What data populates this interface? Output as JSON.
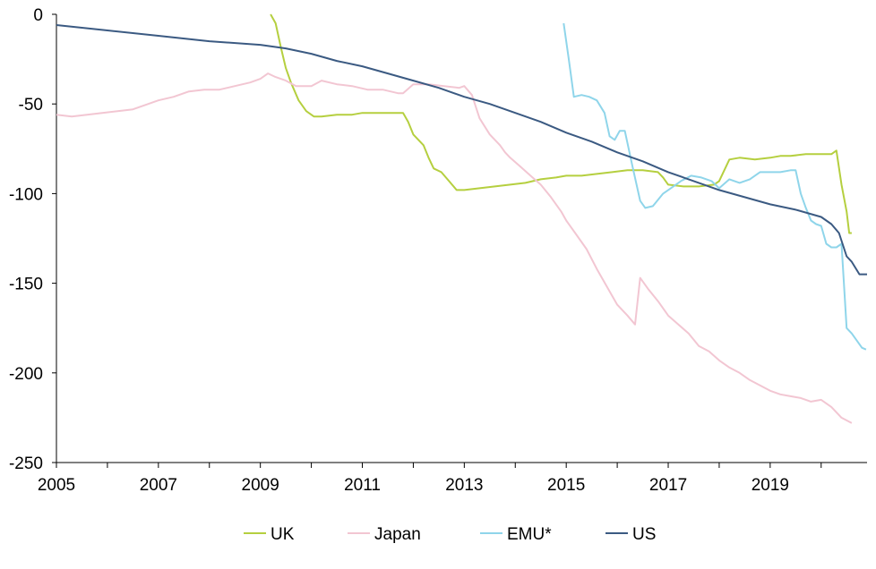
{
  "chart_data": {
    "type": "line",
    "title": "",
    "xlabel": "",
    "ylabel": "",
    "xlim": [
      2005,
      2020.9
    ],
    "ylim": [
      -250,
      0
    ],
    "x_ticks": [
      "2005",
      "2007",
      "2009",
      "2011",
      "2013",
      "2015",
      "2017",
      "2019"
    ],
    "y_ticks": [
      "0",
      "-50",
      "-100",
      "-150",
      "-200",
      "-250"
    ],
    "grid": false,
    "legend_position": "bottom",
    "series": [
      {
        "name": "UK",
        "color": "#b5cf3f",
        "x": [
          2009.2,
          2009.3,
          2009.4,
          2009.5,
          2009.6,
          2009.75,
          2009.9,
          2010.05,
          2010.2,
          2010.5,
          2010.8,
          2011.0,
          2011.2,
          2011.4,
          2011.6,
          2011.8,
          2011.9,
          2012.0,
          2012.2,
          2012.3,
          2012.4,
          2012.55,
          2012.7,
          2012.85,
          2013.0,
          2013.3,
          2013.6,
          2013.9,
          2014.2,
          2014.5,
          2014.8,
          2015.0,
          2015.3,
          2015.6,
          2015.9,
          2016.2,
          2016.5,
          2016.8,
          2016.9,
          2017.0,
          2017.3,
          2017.6,
          2017.9,
          2018.0,
          2018.2,
          2018.4,
          2018.7,
          2019.0,
          2019.2,
          2019.4,
          2019.7,
          2020.0,
          2020.2,
          2020.3,
          2020.4,
          2020.5,
          2020.55,
          2020.6
        ],
        "y": [
          0,
          -5,
          -18,
          -30,
          -38,
          -48,
          -54,
          -57,
          -57,
          -56,
          -56,
          -55,
          -55,
          -55,
          -55,
          -55,
          -60,
          -67,
          -73,
          -80,
          -86,
          -88,
          -93,
          -98,
          -98,
          -97,
          -96,
          -95,
          -94,
          -92,
          -91,
          -90,
          -90,
          -89,
          -88,
          -87,
          -87,
          -88,
          -91,
          -95,
          -96,
          -96,
          -95,
          -93,
          -81,
          -80,
          -81,
          -80,
          -79,
          -79,
          -78,
          -78,
          -78,
          -76,
          -95,
          -110,
          -122,
          -122
        ]
      },
      {
        "name": "Japan",
        "color": "#f2c6d2",
        "x": [
          2005.0,
          2005.3,
          2005.6,
          2005.9,
          2006.2,
          2006.5,
          2006.8,
          2007.0,
          2007.3,
          2007.6,
          2007.9,
          2008.2,
          2008.5,
          2008.8,
          2009.0,
          2009.15,
          2009.3,
          2009.5,
          2009.7,
          2010.0,
          2010.2,
          2010.5,
          2010.8,
          2011.1,
          2011.4,
          2011.7,
          2011.8,
          2012.0,
          2012.3,
          2012.6,
          2012.9,
          2013.0,
          2013.15,
          2013.3,
          2013.5,
          2013.7,
          2013.8,
          2013.9,
          2014.1,
          2014.3,
          2014.5,
          2014.7,
          2014.9,
          2015.0,
          2015.2,
          2015.4,
          2015.6,
          2015.8,
          2016.0,
          2016.2,
          2016.35,
          2016.45,
          2016.6,
          2016.8,
          2017.0,
          2017.2,
          2017.4,
          2017.6,
          2017.8,
          2018.0,
          2018.2,
          2018.4,
          2018.6,
          2018.8,
          2019.0,
          2019.2,
          2019.4,
          2019.6,
          2019.8,
          2020.0,
          2020.2,
          2020.4,
          2020.6
        ],
        "y": [
          -56,
          -57,
          -56,
          -55,
          -54,
          -53,
          -50,
          -48,
          -46,
          -43,
          -42,
          -42,
          -40,
          -38,
          -36,
          -33,
          -35,
          -37,
          -40,
          -40,
          -37,
          -39,
          -40,
          -42,
          -42,
          -44,
          -44,
          -39,
          -39,
          -40,
          -41,
          -40,
          -45,
          -58,
          -67,
          -73,
          -77,
          -80,
          -85,
          -90,
          -95,
          -102,
          -110,
          -115,
          -123,
          -131,
          -142,
          -152,
          -162,
          -168,
          -173,
          -147,
          -153,
          -160,
          -168,
          -173,
          -178,
          -185,
          -188,
          -193,
          -197,
          -200,
          -204,
          -207,
          -210,
          -212,
          -213,
          -214,
          -216,
          -215,
          -219,
          -225,
          -228
        ]
      },
      {
        "name": "EMU*",
        "color": "#8fd5ea",
        "x": [
          2014.95,
          2015.05,
          2015.15,
          2015.3,
          2015.45,
          2015.6,
          2015.75,
          2015.85,
          2015.95,
          2016.05,
          2016.15,
          2016.3,
          2016.45,
          2016.55,
          2016.7,
          2016.9,
          2017.05,
          2017.25,
          2017.45,
          2017.65,
          2017.85,
          2018.0,
          2018.2,
          2018.4,
          2018.6,
          2018.8,
          2019.0,
          2019.2,
          2019.4,
          2019.5,
          2019.6,
          2019.7,
          2019.8,
          2019.9,
          2020.0,
          2020.1,
          2020.2,
          2020.3,
          2020.4,
          2020.5,
          2020.6,
          2020.7,
          2020.8,
          2020.88
        ],
        "y": [
          -5,
          -25,
          -46,
          -45,
          -46,
          -48,
          -55,
          -68,
          -70,
          -65,
          -65,
          -85,
          -104,
          -108,
          -107,
          -100,
          -97,
          -93,
          -90,
          -91,
          -93,
          -97,
          -92,
          -94,
          -92,
          -88,
          -88,
          -88,
          -87,
          -87,
          -100,
          -108,
          -115,
          -117,
          -118,
          -128,
          -130,
          -130,
          -128,
          -175,
          -178,
          -182,
          -186,
          -187
        ]
      },
      {
        "name": "US",
        "color": "#3b5a82",
        "x": [
          2005.0,
          2006.0,
          2007.0,
          2008.0,
          2009.0,
          2009.5,
          2010.0,
          2010.5,
          2011.0,
          2011.5,
          2012.0,
          2012.5,
          2013.0,
          2013.5,
          2014.0,
          2014.5,
          2015.0,
          2015.5,
          2016.0,
          2016.5,
          2017.0,
          2017.5,
          2018.0,
          2018.5,
          2019.0,
          2019.5,
          2020.0,
          2020.2,
          2020.35,
          2020.5,
          2020.6,
          2020.75,
          2020.9
        ],
        "y": [
          -6,
          -9,
          -12,
          -15,
          -17,
          -19,
          -22,
          -26,
          -29,
          -33,
          -37,
          -41,
          -46,
          -50,
          -55,
          -60,
          -66,
          -71,
          -77,
          -82,
          -88,
          -93,
          -98,
          -102,
          -106,
          -109,
          -113,
          -117,
          -122,
          -135,
          -138,
          -145,
          -145
        ]
      }
    ]
  }
}
